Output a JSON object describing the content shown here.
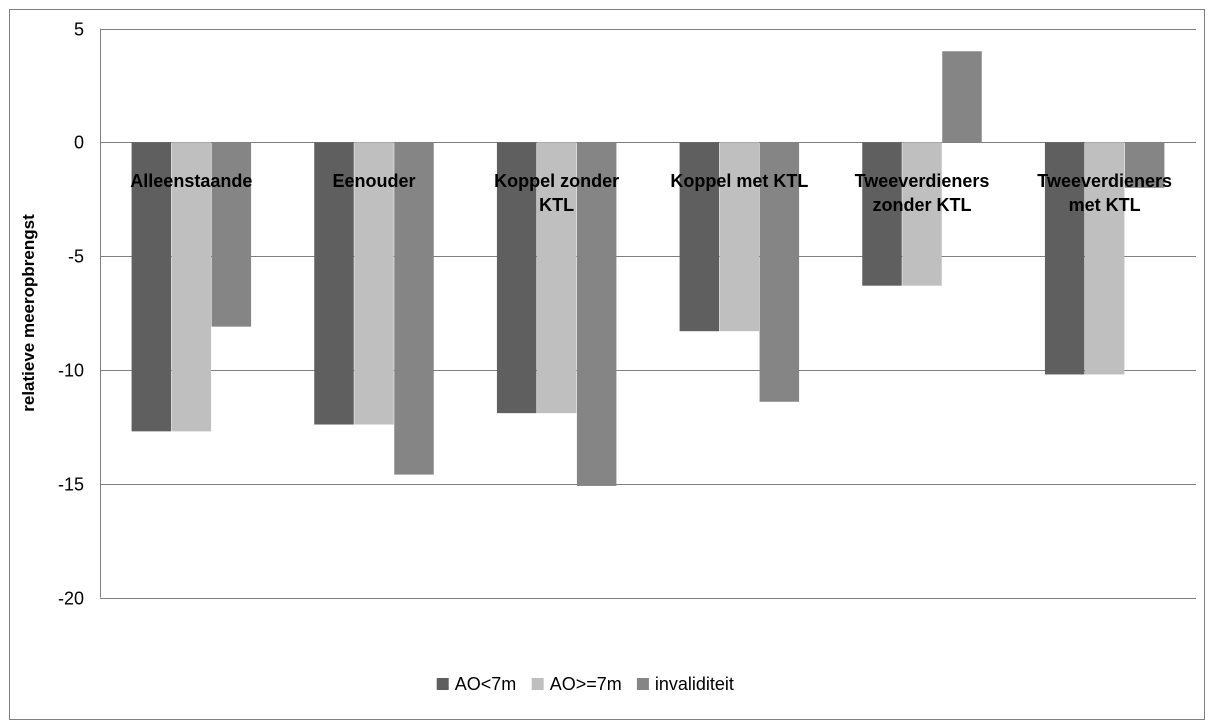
{
  "chart_data": {
    "type": "bar",
    "title": "",
    "xlabel": "",
    "ylabel": "relatieve meeropbrengst",
    "ylim": [
      -20,
      5
    ],
    "yticks": [
      5,
      0,
      -5,
      -10,
      -15,
      -20
    ],
    "grid": true,
    "legend_position": "bottom",
    "categories": [
      [
        "Alleenstaande"
      ],
      [
        "Eenouder"
      ],
      [
        "Koppel zonder",
        "KTL"
      ],
      [
        "Koppel met KTL"
      ],
      [
        "Tweeverdieners",
        "zonder KTL"
      ],
      [
        "Tweeverdieners",
        "met KTL"
      ]
    ],
    "series": [
      {
        "name": "AO<7m",
        "color": "#5f5f5f",
        "values": [
          -12.7,
          -12.4,
          -11.9,
          -8.3,
          -6.3,
          -10.2
        ]
      },
      {
        "name": "AO>=7m",
        "color": "#bfbfbf",
        "values": [
          -12.7,
          -12.4,
          -11.9,
          -8.3,
          -6.3,
          -10.2
        ]
      },
      {
        "name": "invaliditeit",
        "color": "#858585",
        "values": [
          -8.1,
          -14.6,
          -15.1,
          -11.4,
          4.0,
          -2.0
        ]
      }
    ]
  }
}
